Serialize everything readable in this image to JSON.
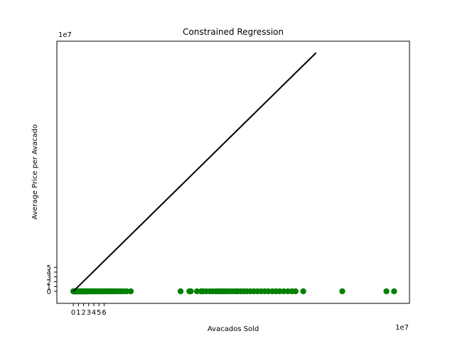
{
  "chart_data": {
    "type": "scatter",
    "title": "Constrained Regression",
    "xlabel": "Avacados Sold",
    "ylabel": "Average Price per Avacado",
    "x_offset_label": "1e7",
    "y_offset_label": "1e7",
    "xlim": [
      -3.2,
      65.5
    ],
    "ylim": [
      -2.5,
      52.0
    ],
    "x_ticks": [
      0,
      1,
      2,
      3,
      4,
      5,
      6
    ],
    "y_ticks": [
      0,
      1,
      2,
      3,
      4,
      5
    ],
    "grid": false,
    "colors": {
      "points": "#008000",
      "line": "#000000"
    },
    "regression_line": {
      "x": [
        0,
        47.3
      ],
      "y": [
        0,
        49.6
      ]
    },
    "series": [
      {
        "x": [
          0.01,
          0.03,
          0.05,
          0.08,
          0.1,
          0.14,
          0.18,
          0.22,
          0.27,
          0.32,
          0.38,
          0.44,
          0.5,
          0.57,
          0.64,
          0.7,
          0.78,
          0.85,
          0.92,
          1.0,
          1.1,
          1.2,
          1.3,
          1.4,
          1.5,
          1.6,
          1.7,
          1.8,
          1.9,
          2.0,
          2.1,
          2.2,
          2.3,
          2.4,
          2.5,
          2.6,
          2.7,
          2.8,
          2.9,
          3.0,
          3.2,
          3.4,
          3.6,
          3.8,
          4.0,
          4.2,
          4.4,
          4.6,
          4.8,
          5.0,
          5.2,
          5.4,
          5.6,
          5.8,
          6.0,
          6.2,
          6.5,
          6.8,
          7.1,
          7.4,
          7.7,
          8.0,
          8.4,
          8.8,
          9.3,
          9.8,
          10.4,
          11.2,
          20.9,
          22.6,
          22.9,
          24.1,
          24.9,
          25.3,
          25.9,
          26.6,
          27.2,
          27.8,
          28.3,
          28.8,
          29.3,
          29.8,
          30.3,
          30.9,
          31.5,
          32.0,
          32.6,
          33.2,
          33.8,
          34.5,
          35.2,
          35.9,
          36.6,
          37.3,
          38.0,
          38.8,
          39.5,
          40.2,
          41.0,
          41.8,
          42.6,
          43.3,
          44.8,
          52.4,
          61.0,
          62.5
        ],
        "y": [
          0,
          0,
          0,
          0,
          0,
          0,
          0,
          0,
          0,
          0,
          0,
          0,
          0,
          0,
          0,
          0,
          0,
          0,
          0,
          0,
          0,
          0,
          0,
          0,
          0,
          0,
          0,
          0,
          0,
          0,
          0,
          0,
          0,
          0,
          0,
          0,
          0,
          0,
          0,
          0,
          0,
          0,
          0,
          0,
          0,
          0,
          0,
          0,
          0,
          0,
          0,
          0,
          0,
          0,
          0,
          0,
          0,
          0,
          0,
          0,
          0,
          0,
          0,
          0,
          0,
          0,
          0,
          0,
          0,
          0,
          0,
          0,
          0,
          0,
          0,
          0,
          0,
          0,
          0,
          0,
          0,
          0,
          0,
          0,
          0,
          0,
          0,
          0,
          0,
          0,
          0,
          0,
          0,
          0,
          0,
          0,
          0,
          0,
          0,
          0,
          0,
          0,
          0,
          0,
          0,
          0
        ]
      }
    ]
  }
}
